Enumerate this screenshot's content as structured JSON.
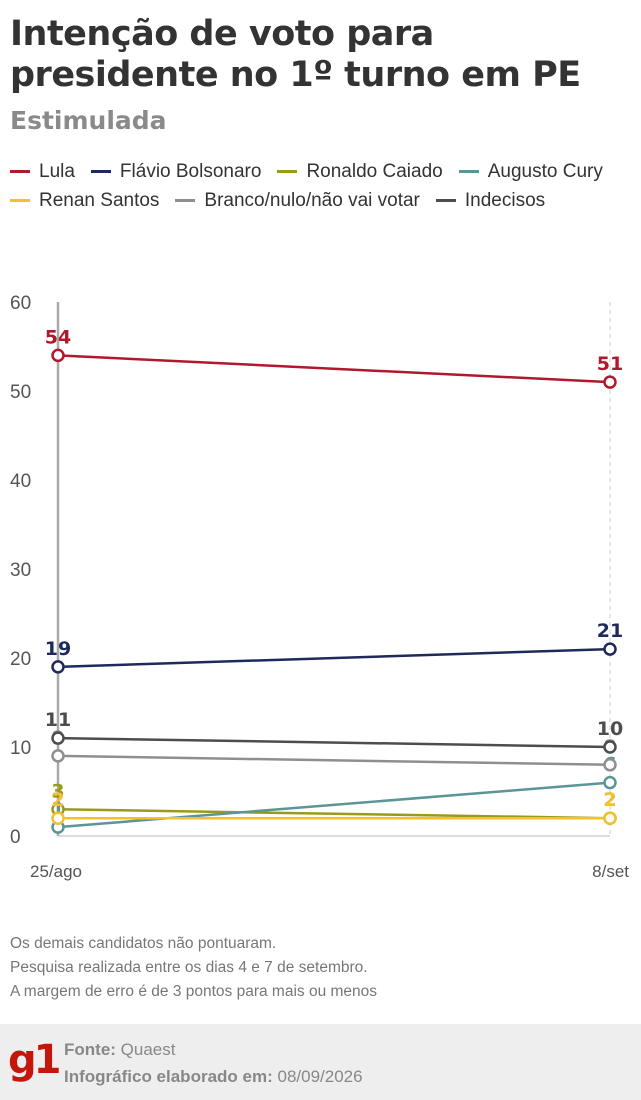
{
  "header": {
    "title": "Intenção de voto para presidente no 1º turno em PE",
    "subtitle": "Estimulada"
  },
  "notes": [
    "Os demais candidatos não pontuaram.",
    "Pesquisa realizada entre os dias 4 e 7 de setembro.",
    "A margem de erro é de 3 pontos para mais ou menos"
  ],
  "footer": {
    "logo": "g1",
    "source_label": "Fonte:",
    "source_value": "Quaest",
    "date_label": "Infográfico elaborado em:",
    "date_value": "08/09/2026"
  },
  "chart_data": {
    "type": "line",
    "x": [
      "25/ago",
      "8/set"
    ],
    "ylim": [
      0,
      60
    ],
    "yticks": [
      0,
      10,
      20,
      30,
      40,
      50,
      60
    ],
    "grid": false,
    "legend_position": "top",
    "series": [
      {
        "name": "Lula",
        "color": "#b0182b",
        "values": [
          54,
          51
        ]
      },
      {
        "name": "Flávio Bolsonaro",
        "color": "#1f2a5c",
        "values": [
          19,
          21
        ]
      },
      {
        "name": "Ronaldo Caiado",
        "color": "#9a9a1a",
        "values": [
          3,
          2
        ]
      },
      {
        "name": "Augusto Cury",
        "color": "#5b9595",
        "values": [
          1,
          6
        ]
      },
      {
        "name": "Renan Santos",
        "color": "#f2c12e",
        "values": [
          2,
          2
        ]
      },
      {
        "name": "Branco/nulo/não vai votar",
        "color": "#8f8f8f",
        "values": [
          9,
          8
        ]
      },
      {
        "name": "Indecisos",
        "color": "#4d4d4d",
        "values": [
          11,
          10
        ]
      }
    ]
  }
}
